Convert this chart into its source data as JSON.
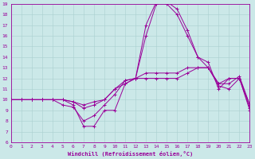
{
  "xlabel": "Windchill (Refroidissement éolien,°C)",
  "background_color": "#cbe8e8",
  "line_color": "#990099",
  "grid_color": "#aacfcf",
  "xlim": [
    0,
    23
  ],
  "ylim": [
    6,
    19
  ],
  "xticks": [
    0,
    1,
    2,
    3,
    4,
    5,
    6,
    7,
    8,
    9,
    10,
    11,
    12,
    13,
    14,
    15,
    16,
    17,
    18,
    19,
    20,
    21,
    22,
    23
  ],
  "yticks": [
    6,
    7,
    8,
    9,
    10,
    11,
    12,
    13,
    14,
    15,
    16,
    17,
    18,
    19
  ],
  "lines": [
    [
      10,
      10,
      10,
      10,
      10,
      10,
      9.5,
      7.5,
      7.5,
      9.0,
      9.0,
      11.5,
      12.0,
      17.0,
      19.2,
      19.2,
      18.5,
      16.5,
      14.0,
      13.0,
      11.5,
      12.0,
      12.0,
      9.0
    ],
    [
      10,
      10,
      10,
      10,
      10,
      9.5,
      9.3,
      8.0,
      8.5,
      9.5,
      10.5,
      11.8,
      12.0,
      16.0,
      19.0,
      19.0,
      18.0,
      16.0,
      14.0,
      13.5,
      11.0,
      12.0,
      12.0,
      9.2
    ],
    [
      10,
      10,
      10,
      10,
      10,
      10,
      9.8,
      9.2,
      9.5,
      10.0,
      11.0,
      11.8,
      12.0,
      12.5,
      12.5,
      12.5,
      12.5,
      13.0,
      13.0,
      13.0,
      11.5,
      11.5,
      12.2,
      9.5
    ],
    [
      10,
      10,
      10,
      10,
      10,
      10,
      9.8,
      9.5,
      9.8,
      10.0,
      11.0,
      11.5,
      12.0,
      12.0,
      12.0,
      12.0,
      12.0,
      12.5,
      13.0,
      13.0,
      11.3,
      11.0,
      12.0,
      9.5
    ]
  ]
}
